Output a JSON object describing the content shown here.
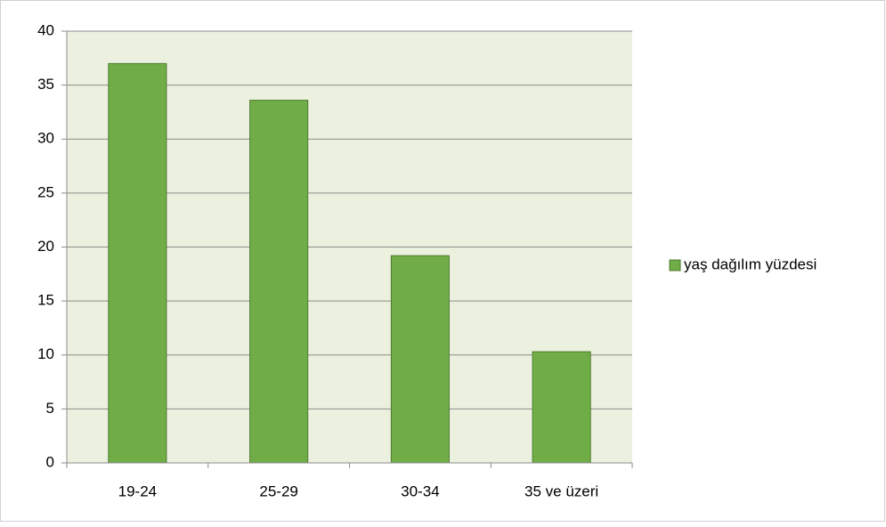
{
  "chart_data": {
    "type": "bar",
    "categories": [
      "19-24",
      "25-29",
      "30-34",
      "35 ve üzeri"
    ],
    "series": [
      {
        "name": "yaş dağılım yüzdesi",
        "color": "#70ad47",
        "values": [
          37,
          33.6,
          19.2,
          10.3
        ]
      }
    ],
    "ylim": [
      0,
      40
    ],
    "yticks": [
      0,
      5,
      10,
      15,
      20,
      25,
      30,
      35,
      40
    ],
    "grid": true,
    "legend": "right"
  }
}
